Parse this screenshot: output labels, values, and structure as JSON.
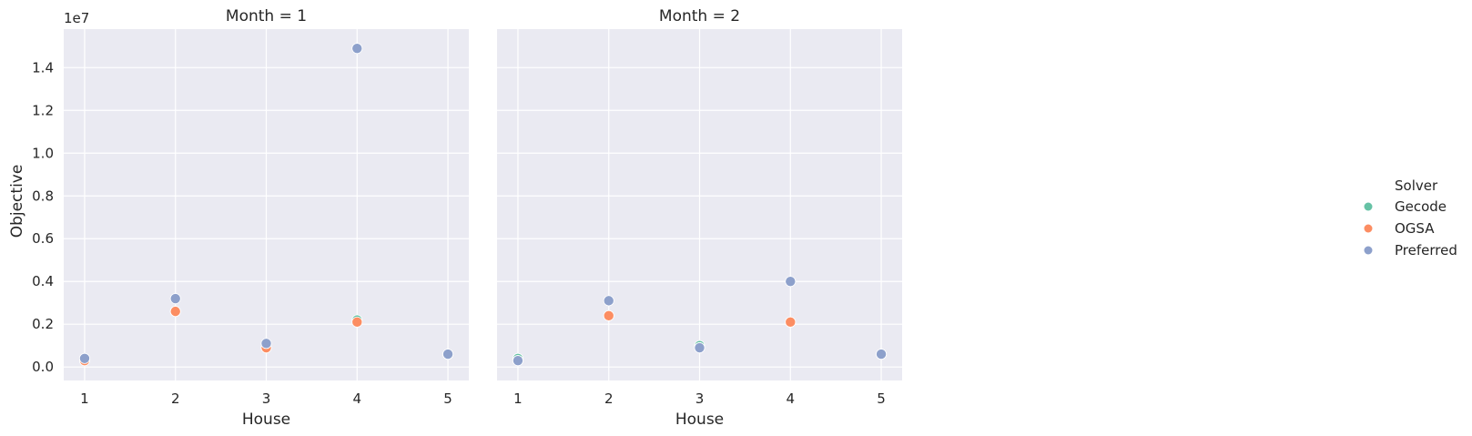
{
  "chart_data": {
    "type": "scatter",
    "y_offset_label": "1e7",
    "ylabel": "Objective",
    "xlabel": "House",
    "x_ticks": [
      1,
      2,
      3,
      4,
      5
    ],
    "y_ticks": [
      0.0,
      0.2,
      0.4,
      0.6,
      0.8,
      1.0,
      1.2,
      1.4
    ],
    "y_tick_labels": [
      "0.0",
      "0.2",
      "0.4",
      "0.6",
      "0.8",
      "1.0",
      "1.2",
      "1.4"
    ],
    "xlim": [
      0.77,
      5.23
    ],
    "ylim": [
      -0.063,
      1.58
    ],
    "y_scale_factor": 10000000,
    "grid": true,
    "legend": {
      "title": "Solver",
      "placement": "right",
      "entries": [
        "Gecode",
        "OGSA",
        "Preferred"
      ]
    },
    "colors": {
      "Gecode": "#66c2a5",
      "OGSA": "#fc8d62",
      "Preferred": "#8da0cb",
      "background": "#eaeaf2",
      "grid": "#ffffff"
    },
    "panels": [
      {
        "title": "Month = 1",
        "series": [
          {
            "name": "Gecode",
            "x": [
              1,
              2,
              3,
              4,
              5
            ],
            "y": [
              0.03,
              0.26,
              0.09,
              0.22,
              0.06
            ]
          },
          {
            "name": "OGSA",
            "x": [
              1,
              2,
              3,
              4,
              5
            ],
            "y": [
              0.03,
              0.26,
              0.09,
              0.21,
              0.06
            ]
          },
          {
            "name": "Preferred",
            "x": [
              1,
              2,
              3,
              4,
              5
            ],
            "y": [
              0.04,
              0.32,
              0.11,
              1.49,
              0.06
            ]
          }
        ]
      },
      {
        "title": "Month = 2",
        "series": [
          {
            "name": "Gecode",
            "x": [
              1,
              2,
              3,
              4,
              5
            ],
            "y": [
              0.04,
              0.24,
              0.1,
              0.21,
              0.06
            ]
          },
          {
            "name": "OGSA",
            "x": [
              1,
              2,
              3,
              4,
              5
            ],
            "y": [
              0.03,
              0.24,
              0.09,
              0.21,
              0.06
            ]
          },
          {
            "name": "Preferred",
            "x": [
              1,
              2,
              3,
              4,
              5
            ],
            "y": [
              0.03,
              0.31,
              0.09,
              0.4,
              0.06
            ]
          }
        ]
      }
    ]
  }
}
